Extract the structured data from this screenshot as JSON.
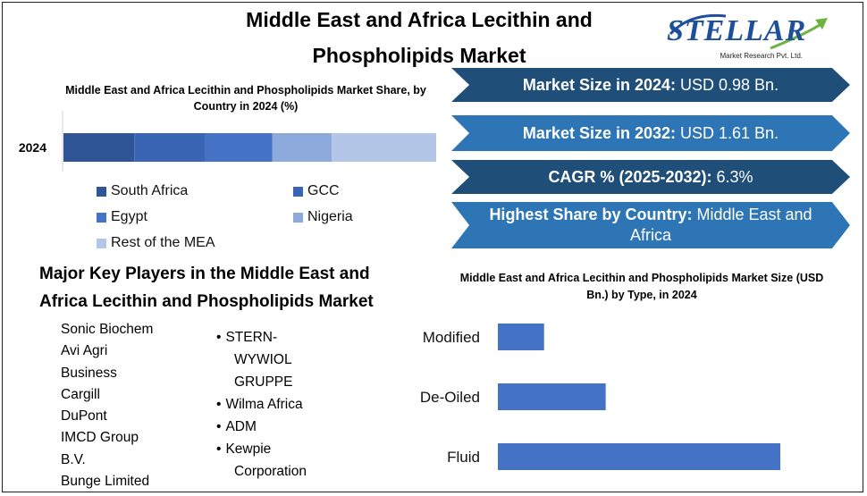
{
  "title": "Middle East and Africa Lecithin and Phospholipids Market",
  "logo": {
    "name": "STELLAR",
    "subtitle": "Market Research Pvt. Ltd."
  },
  "colors": {
    "banner_dark": "#1f4e79",
    "banner_light": "#2e75b6",
    "bar": "#4472c4"
  },
  "info_banners": [
    {
      "label": "Market Size in 2024:",
      "value": "USD  0.98  Bn.",
      "color": "#1f4e79"
    },
    {
      "label": "Market Size in 2032:",
      "value": "USD 1.61 Bn.",
      "color": "#2e75b6"
    },
    {
      "label": "CAGR % (2025-2032):",
      "value": "6.3%",
      "color": "#1f4e79"
    },
    {
      "label": "Highest Share by Country:",
      "value": "Middle East and Africa",
      "color": "#2e75b6"
    }
  ],
  "key_players": {
    "title": "Major Key Players in the Middle East and Africa Lecithin and Phospholipids Market",
    "column1": [
      "Sonic Biochem",
      "Avi Agri",
      "Business",
      "Cargill",
      "DuPont",
      "IMCD Group",
      "B.V.",
      "Bunge Limited"
    ],
    "column2": [
      {
        "text": "STERN-",
        "bullet": true
      },
      {
        "text": "WYWIOL",
        "bullet": false
      },
      {
        "text": "GRUPPE",
        "bullet": false
      },
      {
        "text": "Wilma Africa",
        "bullet": true
      },
      {
        "text": "ADM",
        "bullet": true
      },
      {
        "text": "Kewpie",
        "bullet": true
      },
      {
        "text": "Corporation",
        "bullet": false
      }
    ]
  },
  "chart_data": [
    {
      "type": "bar",
      "orientation": "horizontal-stacked",
      "title": "Middle East and Africa Lecithin and Phospholipids Market Share, by Country in 2024 (%)",
      "categories": [
        "2024"
      ],
      "series": [
        {
          "name": "South Africa",
          "values": [
            19
          ],
          "color": "#2f5597"
        },
        {
          "name": "GCC",
          "values": [
            19
          ],
          "color": "#3a65b5"
        },
        {
          "name": "Egypt",
          "values": [
            18
          ],
          "color": "#4472c4"
        },
        {
          "name": "Nigeria",
          "values": [
            16
          ],
          "color": "#8ea9db"
        },
        {
          "name": "Rest of the MEA",
          "values": [
            28
          ],
          "color": "#b4c6e7"
        }
      ],
      "xlim": [
        0,
        100
      ],
      "legend": "bottom"
    },
    {
      "type": "bar",
      "orientation": "horizontal",
      "title": "Middle East and Africa Lecithin and Phospholipids Market Size (USD Bn.) by Type, in 2024",
      "categories": [
        "Modified",
        "De-Oiled",
        "Fluid"
      ],
      "values": [
        0.09,
        0.21,
        0.55
      ],
      "xlim": [
        0,
        0.6
      ],
      "xlabel": "",
      "ylabel": ""
    }
  ]
}
